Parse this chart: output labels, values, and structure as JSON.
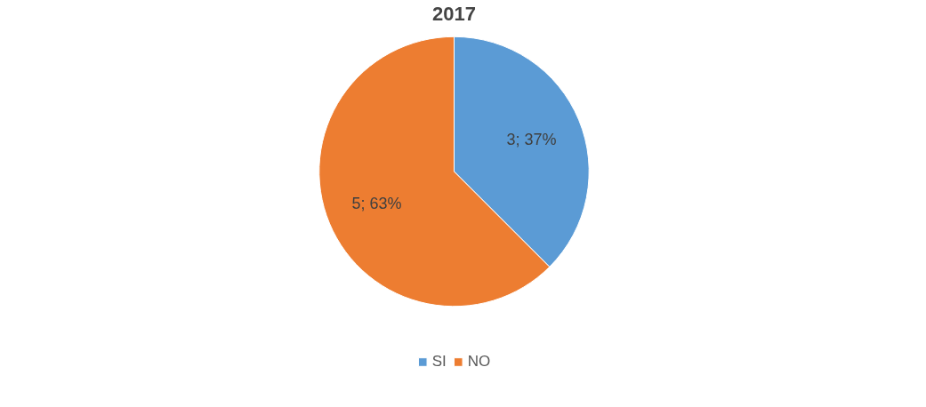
{
  "chart_data": {
    "type": "pie",
    "title": "2017",
    "categories": [
      "SI",
      "NO"
    ],
    "values": [
      3,
      5
    ],
    "colors": [
      "#5b9bd5",
      "#ed7d31"
    ],
    "value_labels": [
      "3; 37%",
      "5; 63%"
    ],
    "legend": "bottom"
  }
}
